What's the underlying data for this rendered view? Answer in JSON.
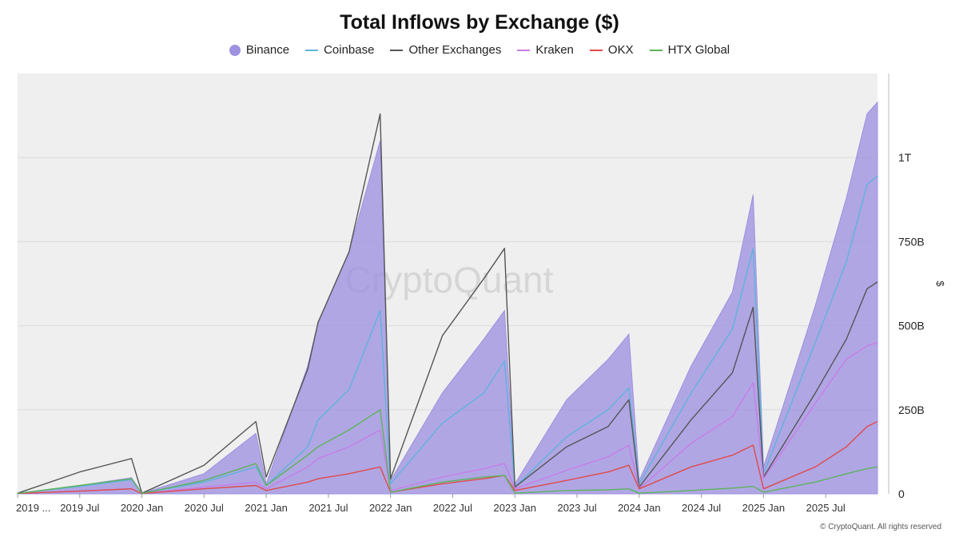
{
  "footer": "© CryptoQuant. All rights reserved",
  "watermark": "CryptoQuant",
  "chart_data": {
    "type": "area",
    "title": "Total Inflows by Exchange ($)",
    "xlabel": "",
    "ylabel": "$",
    "grid": true,
    "legend_position": "top-center",
    "plot_background": "#efefef",
    "ylim": [
      0,
      1250
    ],
    "y_unit": "billion USD",
    "yticks": [
      0,
      250,
      500,
      750,
      1000
    ],
    "ytick_labels": [
      "0",
      "250B",
      "500B",
      "750B",
      "1T"
    ],
    "x_range": [
      "2019-01",
      "2025-12"
    ],
    "xtick_labels": [
      "2019 ...",
      "2019 Jul",
      "2020 Jan",
      "2020 Jul",
      "2021 Jan",
      "2021 Jul",
      "2022 Jan",
      "2022 Jul",
      "2023 Jan",
      "2023 Jul",
      "2024 Jan",
      "2024 Jul",
      "2025 Jan",
      "2025 Jul"
    ],
    "xtick_dates": [
      "2019-01",
      "2019-07",
      "2020-01",
      "2020-07",
      "2021-01",
      "2021-07",
      "2022-01",
      "2022-07",
      "2023-01",
      "2023-07",
      "2024-01",
      "2024-07",
      "2025-01",
      "2025-07"
    ],
    "series": [
      {
        "name": "Binance",
        "style": "area",
        "color": "#9d91e0",
        "points": [
          [
            "2019-01",
            2
          ],
          [
            "2019-07",
            25
          ],
          [
            "2019-12",
            48
          ],
          [
            "2020-01",
            2
          ],
          [
            "2020-07",
            60
          ],
          [
            "2020-12",
            180
          ],
          [
            "2021-01",
            30
          ],
          [
            "2021-05",
            380
          ],
          [
            "2021-06",
            510
          ],
          [
            "2021-09",
            720
          ],
          [
            "2021-12",
            1050
          ],
          [
            "2022-01",
            40
          ],
          [
            "2022-06",
            300
          ],
          [
            "2022-10",
            460
          ],
          [
            "2022-12",
            545
          ],
          [
            "2023-01",
            30
          ],
          [
            "2023-06",
            280
          ],
          [
            "2023-10",
            400
          ],
          [
            "2023-12",
            475
          ],
          [
            "2024-01",
            40
          ],
          [
            "2024-06",
            380
          ],
          [
            "2024-10",
            600
          ],
          [
            "2024-12",
            890
          ],
          [
            "2025-01",
            80
          ],
          [
            "2025-06",
            560
          ],
          [
            "2025-09",
            880
          ],
          [
            "2025-11",
            1130
          ],
          [
            "2025-12",
            1165
          ]
        ]
      },
      {
        "name": "Coinbase",
        "style": "line",
        "color": "#5fb3dc",
        "points": [
          [
            "2019-01",
            2
          ],
          [
            "2019-07",
            22
          ],
          [
            "2019-12",
            42
          ],
          [
            "2020-01",
            2
          ],
          [
            "2020-07",
            35
          ],
          [
            "2020-12",
            80
          ],
          [
            "2021-01",
            25
          ],
          [
            "2021-05",
            140
          ],
          [
            "2021-06",
            220
          ],
          [
            "2021-09",
            310
          ],
          [
            "2021-12",
            545
          ],
          [
            "2022-01",
            30
          ],
          [
            "2022-06",
            210
          ],
          [
            "2022-10",
            300
          ],
          [
            "2022-12",
            395
          ],
          [
            "2023-01",
            20
          ],
          [
            "2023-06",
            170
          ],
          [
            "2023-10",
            250
          ],
          [
            "2023-12",
            315
          ],
          [
            "2024-01",
            30
          ],
          [
            "2024-06",
            300
          ],
          [
            "2024-10",
            490
          ],
          [
            "2024-12",
            730
          ],
          [
            "2025-01",
            60
          ],
          [
            "2025-06",
            450
          ],
          [
            "2025-09",
            690
          ],
          [
            "2025-11",
            920
          ],
          [
            "2025-12",
            945
          ]
        ]
      },
      {
        "name": "Other Exchanges",
        "style": "line",
        "color": "#555555",
        "points": [
          [
            "2019-01",
            2
          ],
          [
            "2019-07",
            65
          ],
          [
            "2019-12",
            105
          ],
          [
            "2020-01",
            2
          ],
          [
            "2020-07",
            85
          ],
          [
            "2020-12",
            215
          ],
          [
            "2021-01",
            50
          ],
          [
            "2021-05",
            370
          ],
          [
            "2021-06",
            510
          ],
          [
            "2021-09",
            720
          ],
          [
            "2021-12",
            1130
          ],
          [
            "2022-01",
            45
          ],
          [
            "2022-06",
            470
          ],
          [
            "2022-10",
            640
          ],
          [
            "2022-12",
            730
          ],
          [
            "2023-01",
            20
          ],
          [
            "2023-06",
            140
          ],
          [
            "2023-10",
            200
          ],
          [
            "2023-12",
            280
          ],
          [
            "2024-01",
            20
          ],
          [
            "2024-06",
            220
          ],
          [
            "2024-10",
            360
          ],
          [
            "2024-12",
            555
          ],
          [
            "2025-01",
            50
          ],
          [
            "2025-06",
            300
          ],
          [
            "2025-09",
            460
          ],
          [
            "2025-11",
            610
          ],
          [
            "2025-12",
            630
          ]
        ]
      },
      {
        "name": "Kraken",
        "style": "line",
        "color": "#c77de8",
        "points": [
          [
            "2019-01",
            1
          ],
          [
            "2019-07",
            8
          ],
          [
            "2019-12",
            15
          ],
          [
            "2020-01",
            1
          ],
          [
            "2020-07",
            20
          ],
          [
            "2020-12",
            35
          ],
          [
            "2021-01",
            15
          ],
          [
            "2021-05",
            80
          ],
          [
            "2021-06",
            105
          ],
          [
            "2021-09",
            140
          ],
          [
            "2021-12",
            190
          ],
          [
            "2022-01",
            10
          ],
          [
            "2022-06",
            50
          ],
          [
            "2022-10",
            75
          ],
          [
            "2022-12",
            90
          ],
          [
            "2023-01",
            15
          ],
          [
            "2023-06",
            70
          ],
          [
            "2023-10",
            110
          ],
          [
            "2023-12",
            145
          ],
          [
            "2024-01",
            15
          ],
          [
            "2024-06",
            150
          ],
          [
            "2024-10",
            230
          ],
          [
            "2024-12",
            330
          ],
          [
            "2025-01",
            45
          ],
          [
            "2025-06",
            270
          ],
          [
            "2025-09",
            400
          ],
          [
            "2025-11",
            440
          ],
          [
            "2025-12",
            450
          ]
        ]
      },
      {
        "name": "OKX",
        "style": "line",
        "color": "#e04a4a",
        "points": [
          [
            "2019-01",
            1
          ],
          [
            "2019-07",
            8
          ],
          [
            "2019-12",
            15
          ],
          [
            "2020-01",
            1
          ],
          [
            "2020-07",
            15
          ],
          [
            "2020-12",
            25
          ],
          [
            "2021-01",
            10
          ],
          [
            "2021-05",
            35
          ],
          [
            "2021-06",
            45
          ],
          [
            "2021-09",
            60
          ],
          [
            "2021-12",
            80
          ],
          [
            "2022-01",
            5
          ],
          [
            "2022-06",
            30
          ],
          [
            "2022-10",
            45
          ],
          [
            "2022-12",
            55
          ],
          [
            "2023-01",
            10
          ],
          [
            "2023-06",
            40
          ],
          [
            "2023-10",
            65
          ],
          [
            "2023-12",
            85
          ],
          [
            "2024-01",
            15
          ],
          [
            "2024-06",
            80
          ],
          [
            "2024-10",
            115
          ],
          [
            "2024-12",
            145
          ],
          [
            "2025-01",
            15
          ],
          [
            "2025-06",
            80
          ],
          [
            "2025-09",
            140
          ],
          [
            "2025-11",
            200
          ],
          [
            "2025-12",
            215
          ]
        ]
      },
      {
        "name": "HTX Global",
        "style": "line",
        "color": "#5cb35c",
        "points": [
          [
            "2019-01",
            1
          ],
          [
            "2019-07",
            25
          ],
          [
            "2019-12",
            45
          ],
          [
            "2020-01",
            1
          ],
          [
            "2020-07",
            40
          ],
          [
            "2020-12",
            90
          ],
          [
            "2021-01",
            25
          ],
          [
            "2021-05",
            115
          ],
          [
            "2021-06",
            140
          ],
          [
            "2021-09",
            190
          ],
          [
            "2021-12",
            250
          ],
          [
            "2022-01",
            5
          ],
          [
            "2022-06",
            35
          ],
          [
            "2022-10",
            50
          ],
          [
            "2022-12",
            55
          ],
          [
            "2023-01",
            2
          ],
          [
            "2023-06",
            10
          ],
          [
            "2023-10",
            12
          ],
          [
            "2023-12",
            15
          ],
          [
            "2024-01",
            2
          ],
          [
            "2024-06",
            10
          ],
          [
            "2024-10",
            17
          ],
          [
            "2024-12",
            22
          ],
          [
            "2025-01",
            5
          ],
          [
            "2025-06",
            35
          ],
          [
            "2025-09",
            60
          ],
          [
            "2025-11",
            75
          ],
          [
            "2025-12",
            80
          ]
        ]
      }
    ]
  }
}
